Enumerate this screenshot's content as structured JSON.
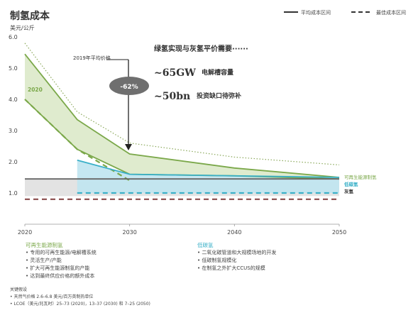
{
  "header": {
    "title": "制氢成本",
    "unit": "美元/公斤"
  },
  "legend": {
    "avg_label": "平均成本区间",
    "best_label": "最佳成本区间"
  },
  "annotations": {
    "avg_2019_label": "2019年平均价格",
    "reduction_badge": "-62%",
    "parity_text": "绿氢实现与灰氢平价需要······",
    "big_1": "~65GW",
    "big_1_desc": "电解槽容量",
    "big_2": "~50bn",
    "big_2_desc": "投资缺口待弥补",
    "year_2020_tag": "2020"
  },
  "chart_data": {
    "type": "area",
    "title": "制氢成本",
    "ylabel": "美元/公斤",
    "x_ticks": [
      2020,
      2030,
      2040,
      2050
    ],
    "y_ticks": [
      "1.0",
      "2.0",
      "3.0",
      "4.0",
      "5.0",
      "6.0"
    ],
    "xlim": [
      2020,
      2050
    ],
    "ylim": [
      0,
      6
    ],
    "series": [
      {
        "name": "可再生能源制氢",
        "role": "green_avg_upper",
        "color": "#7ba84a",
        "x": [
          2020,
          2025,
          2030,
          2040,
          2050
        ],
        "y": [
          5.45,
          3.35,
          2.25,
          1.8,
          1.5
        ]
      },
      {
        "role": "green_avg_lower",
        "color": "#7ba84a",
        "x": [
          2020,
          2025,
          2030,
          2040,
          2050
        ],
        "y": [
          4.0,
          2.4,
          1.6,
          1.55,
          1.45
        ]
      },
      {
        "role": "green_best",
        "color": "#7ba84a",
        "dashed": true,
        "x": [
          2020,
          2025,
          2030
        ],
        "y": [
          4.0,
          2.4,
          1.4
        ]
      },
      {
        "role": "green_upper_dotted",
        "color": "#8aa85a",
        "dotted": true,
        "x": [
          2020,
          2025,
          2030,
          2040,
          2050
        ],
        "y": [
          5.8,
          3.6,
          2.6,
          2.15,
          1.9
        ]
      },
      {
        "name": "低碳氢",
        "role": "blue_avg_upper",
        "color": "#3ab0c8",
        "x": [
          2025,
          2030,
          2050
        ],
        "y": [
          2.05,
          1.6,
          1.5
        ]
      },
      {
        "role": "blue_best",
        "color": "#3ab0c8",
        "dashed": true,
        "x": [
          2025,
          2050
        ],
        "y": [
          1.0,
          1.0
        ]
      },
      {
        "name": "灰氢",
        "role": "grey_avg",
        "color": "#666666",
        "x": [
          2020,
          2050
        ],
        "y": [
          1.45,
          1.45
        ]
      },
      {
        "role": "grey_best",
        "color": "#8a4b4b",
        "dashed": true,
        "x": [
          2020,
          2050
        ],
        "y": [
          0.8,
          0.8
        ]
      },
      {
        "role": "grey_band_range",
        "color": "#e3e3e3",
        "x": [
          2020,
          2050
        ],
        "y_low": [
          0.9,
          0.9
        ],
        "y_high": [
          1.45,
          1.45
        ]
      }
    ],
    "colors": {
      "green": "#7ba84a",
      "green_fill": "#d9e8c6",
      "blue": "#3ab0c8",
      "blue_fill": "#bfe4ef",
      "grey_line": "#666666",
      "grey_fill": "#e3e3e3",
      "badge": "#6f6f6f"
    }
  },
  "notes": {
    "renewable": {
      "heading": "可再生能源制氢",
      "items": [
        "专用的可再生能源/电解槽系统",
        "灵活生产/产能",
        "扩大可再生能源制氢的产能",
        "达到最终供应价格的额外成本"
      ]
    },
    "lowcarbon": {
      "heading": "低碳氢",
      "items": [
        "二氧化碳管道和大规模场地的开发",
        "低碳制氢规模化",
        "在制氢之外扩大CCUS的规模"
      ]
    },
    "assumptions": {
      "heading": "关键假设",
      "items": [
        "天然气价格 2.6–6.8 美元/百万英制热单位",
        "LCOE（美元/兆瓦时）25–73 (2020)，13–37 (2030) 和 7–25 (2050)"
      ]
    }
  }
}
